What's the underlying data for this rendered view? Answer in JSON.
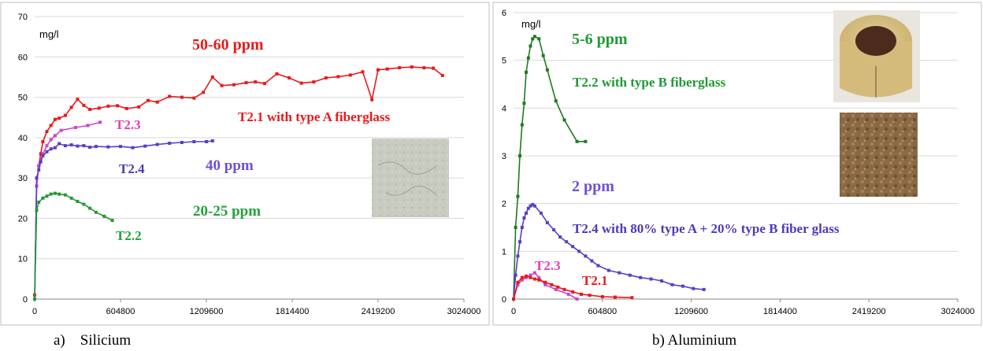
{
  "figure_captions": {
    "left": "a)    Silicium",
    "right": "b) Aluminium"
  },
  "chart_data": [
    {
      "type": "line",
      "unit_label": "mg/l",
      "xlim": [
        0,
        3024000
      ],
      "ylim": [
        0,
        70
      ],
      "x_ticks": [
        0,
        604800,
        1209600,
        1814400,
        2419200,
        3024000
      ],
      "y_ticks": [
        0,
        10,
        20,
        30,
        40,
        50,
        60,
        70
      ],
      "grid": "horizontal",
      "annotations": [
        {
          "text": "50-60 ppm",
          "color": "#e8191b"
        },
        {
          "text": "T2.1 with type A fiberglass",
          "color": "#e8191b"
        },
        {
          "text": "T2.3",
          "color": "#e23fb9"
        },
        {
          "text": "T2.4",
          "color": "#4b3bb8"
        },
        {
          "text": "40 ppm",
          "color": "#6e4fd8"
        },
        {
          "text": "20-25 ppm",
          "color": "#22a33a"
        },
        {
          "text": "T2.2",
          "color": "#22a33a"
        }
      ],
      "inset_image": "grey fiberglass sample photo",
      "series": [
        {
          "name": "T2.1",
          "color": "#e8191b",
          "x": [
            0,
            14000,
            29000,
            43000,
            58000,
            86000,
            115000,
            144000,
            173000,
            216000,
            259000,
            302000,
            346000,
            389000,
            454000,
            518000,
            583000,
            648000,
            734000,
            799000,
            864000,
            950000,
            1037000,
            1123000,
            1188000,
            1253000,
            1318000,
            1404000,
            1490000,
            1555000,
            1620000,
            1706000,
            1793000,
            1879000,
            1966000,
            2052000,
            2138000,
            2224000,
            2311000,
            2376000,
            2419200,
            2484000,
            2570000,
            2657000,
            2743000,
            2808000,
            2873000
          ],
          "y": [
            1,
            28,
            33,
            36,
            39,
            41.5,
            43,
            44.5,
            44.8,
            45.5,
            47.5,
            49.5,
            48,
            47,
            47.3,
            47.8,
            47.9,
            47.2,
            47.6,
            49.2,
            48.8,
            50.2,
            50,
            49.8,
            51.2,
            55,
            52.9,
            53.1,
            53.6,
            53.8,
            53.4,
            55.8,
            54.8,
            53.5,
            53.8,
            54.8,
            55.1,
            55.5,
            56.3,
            49.4,
            56.8,
            57,
            57.3,
            57.5,
            57.3,
            57.2,
            55.4
          ]
        },
        {
          "name": "T2.3",
          "color": "#cc44cc",
          "x": [
            0,
            14000,
            29000,
            58000,
            86000,
            115000,
            144000,
            187000,
            288000,
            374000,
            461000
          ],
          "y": [
            0,
            28,
            33,
            36,
            38,
            39.5,
            40.5,
            41.8,
            42.5,
            43,
            43.8
          ]
        },
        {
          "name": "T2.4",
          "color": "#5b3dc8",
          "x": [
            0,
            14000,
            29000,
            43000,
            58000,
            86000,
            115000,
            144000,
            173000,
            216000,
            259000,
            302000,
            346000,
            389000,
            432000,
            518000,
            605000,
            691000,
            778000,
            864000,
            950000,
            1037000,
            1123000,
            1210000,
            1253000
          ],
          "y": [
            0,
            30,
            32,
            34,
            35.5,
            36.5,
            37.2,
            37.5,
            38.5,
            38,
            38.2,
            37.9,
            38,
            37.6,
            37.8,
            37.7,
            37.8,
            37.5,
            37.9,
            38.3,
            38.6,
            38.8,
            39,
            39,
            39.2
          ]
        },
        {
          "name": "T2.2",
          "color": "#249a35",
          "x": [
            0,
            14000,
            29000,
            58000,
            86000,
            115000,
            144000,
            173000,
            216000,
            259000,
            302000,
            346000,
            389000,
            432000,
            490000,
            547000
          ],
          "y": [
            0,
            22,
            24,
            25,
            25.5,
            26,
            26.2,
            26,
            25.8,
            25,
            24.2,
            23.5,
            22.5,
            21.5,
            20.5,
            19.5
          ]
        }
      ]
    },
    {
      "type": "line",
      "unit_label": "mg/l",
      "xlim": [
        0,
        3024000
      ],
      "ylim": [
        0,
        6
      ],
      "x_ticks": [
        0,
        604800,
        1209600,
        1814400,
        2419200,
        3024000
      ],
      "y_ticks": [
        0,
        1,
        2,
        3,
        4,
        5,
        6
      ],
      "grid": "horizontal",
      "annotations": [
        {
          "text": "5-6 ppm",
          "color": "#1f9a34"
        },
        {
          "text": "T2.2 with type B fiberglass",
          "color": "#1f9a34"
        },
        {
          "text": "2 ppm",
          "color": "#6e4fd8"
        },
        {
          "text": "T2.4 with 80% type A + 20% type B fiber glass",
          "color": "#4b3bb8"
        },
        {
          "text": "T2.3",
          "color": "#e23fb9"
        },
        {
          "text": "T2.1",
          "color": "#e8191b"
        }
      ],
      "inset_images": [
        "fiberglass pipe insulation photo",
        "brown fiberglass sample photo"
      ],
      "series": [
        {
          "name": "T2.2",
          "color": "#1f7a1f",
          "x": [
            0,
            14000,
            29000,
            43000,
            58000,
            72000,
            86000,
            101000,
            115000,
            130000,
            144000,
            173000,
            202000,
            230000,
            288000,
            346000,
            432000,
            490000
          ],
          "y": [
            0,
            1.5,
            2.15,
            3,
            3.65,
            4.1,
            4.75,
            5.05,
            5.3,
            5.45,
            5.5,
            5.45,
            5.1,
            4.8,
            4.15,
            3.75,
            3.3,
            3.3
          ]
        },
        {
          "name": "T2.4",
          "color": "#5b3dc8",
          "x": [
            0,
            14000,
            29000,
            43000,
            58000,
            72000,
            86000,
            101000,
            115000,
            130000,
            144000,
            187000,
            230000,
            274000,
            317000,
            360000,
            403000,
            446000,
            490000,
            533000,
            576000,
            648000,
            720000,
            792000,
            864000,
            936000,
            1008000,
            1080000,
            1152000,
            1224000,
            1296000
          ],
          "y": [
            0,
            0.5,
            0.9,
            1.2,
            1.5,
            1.7,
            1.8,
            1.9,
            1.95,
            1.98,
            1.95,
            1.8,
            1.6,
            1.45,
            1.3,
            1.2,
            1.1,
            1,
            0.9,
            0.8,
            0.7,
            0.6,
            0.55,
            0.5,
            0.45,
            0.42,
            0.38,
            0.3,
            0.27,
            0.22,
            0.2
          ]
        },
        {
          "name": "T2.3",
          "color": "#cc44cc",
          "x": [
            0,
            29000,
            58000,
            86000,
            115000,
            144000,
            173000,
            216000,
            288000,
            374000,
            432000
          ],
          "y": [
            0,
            0.3,
            0.4,
            0.45,
            0.5,
            0.55,
            0.45,
            0.3,
            0.2,
            0.1,
            0
          ]
        },
        {
          "name": "T2.1",
          "color": "#e8191b",
          "x": [
            0,
            29000,
            58000,
            86000,
            115000,
            144000,
            173000,
            216000,
            259000,
            302000,
            346000,
            403000,
            461000,
            518000,
            605000,
            691000,
            806000
          ],
          "y": [
            0,
            0.35,
            0.45,
            0.48,
            0.45,
            0.42,
            0.4,
            0.35,
            0.3,
            0.25,
            0.2,
            0.15,
            0.1,
            0.08,
            0.05,
            0.04,
            0.03
          ]
        }
      ]
    }
  ]
}
